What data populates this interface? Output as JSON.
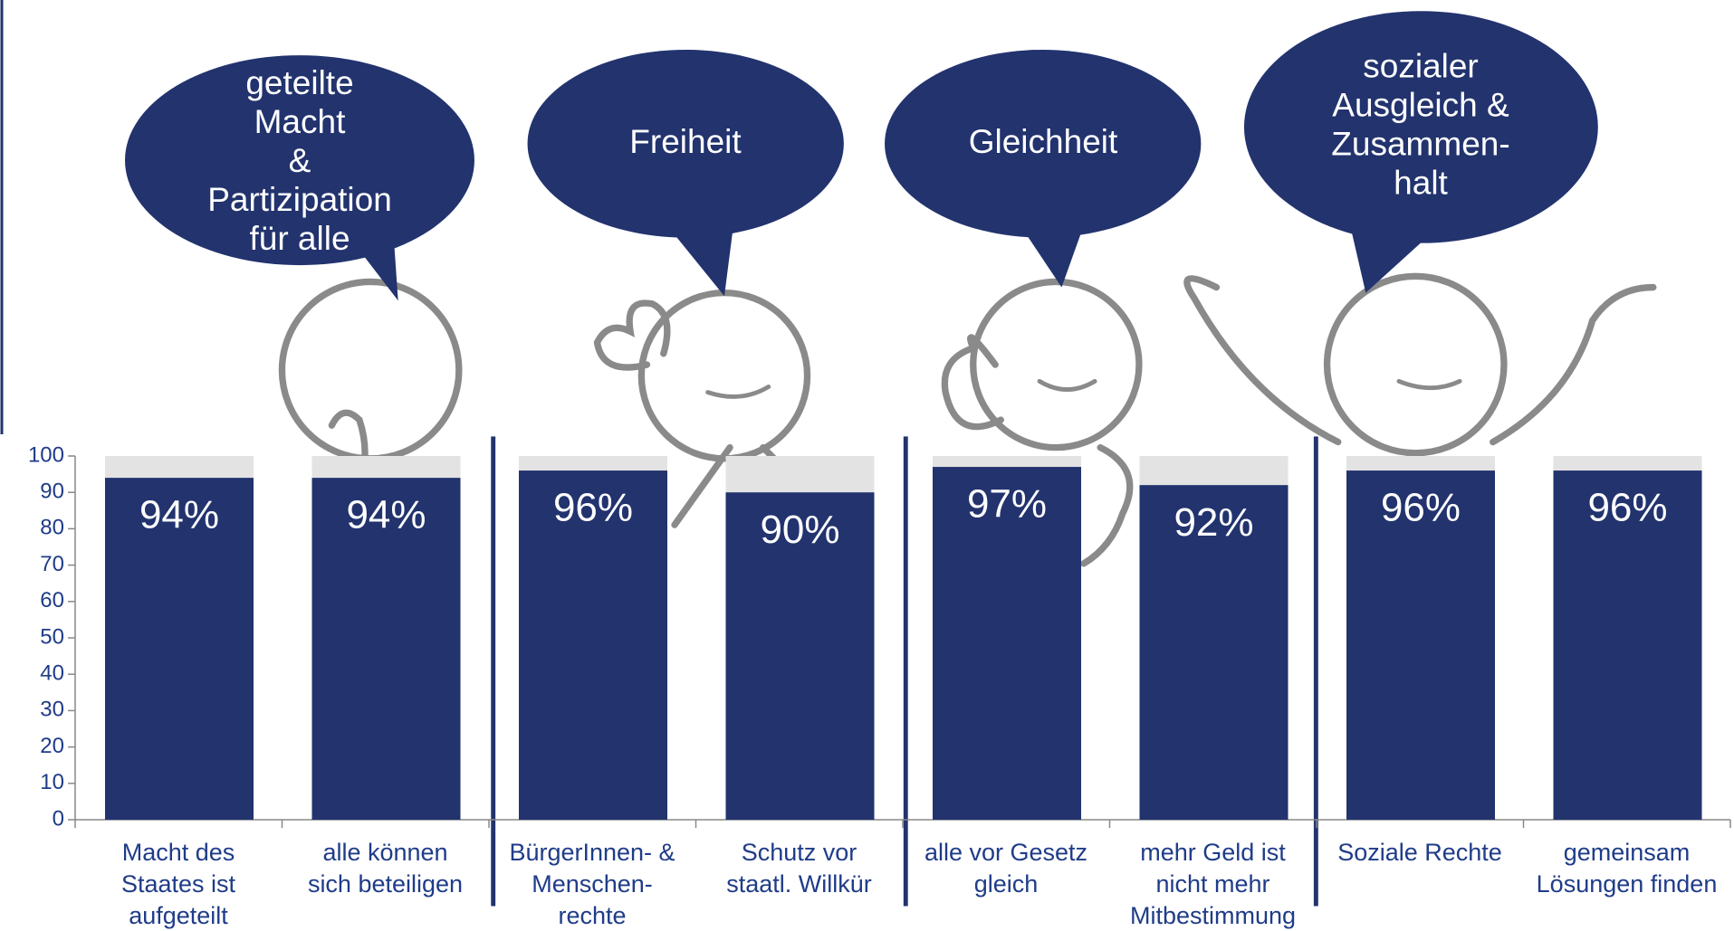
{
  "chart_data": {
    "type": "bar",
    "categories": [
      "Macht des\nStaates ist\naufgeteilt",
      "alle können\nsich beteiligen",
      "BürgerInnen- &\nMenschen-\nrechte",
      "Schutz vor\nstaatl. Willkür",
      "alle vor Gesetz\ngleich",
      "mehr Geld ist\nnicht mehr\nMitbestimmung",
      "Soziale Rechte",
      "gemeinsam\nLösungen finden"
    ],
    "values": [
      94,
      94,
      96,
      90,
      97,
      92,
      96,
      96
    ],
    "value_labels": [
      "94%",
      "94%",
      "96%",
      "90%",
      "97%",
      "92%",
      "96%",
      "96%"
    ],
    "color": "#22336e",
    "ylim": [
      0,
      100
    ],
    "yticks": [
      0,
      10,
      20,
      30,
      40,
      50,
      60,
      70,
      80,
      90,
      100
    ],
    "annotations": [
      "geteilte\nMacht\n&\nPartizipation\nfür alle",
      "Freiheit",
      "Gleichheit",
      "sozialer\nAusgleich &\nZusammen-\nhalt"
    ]
  }
}
